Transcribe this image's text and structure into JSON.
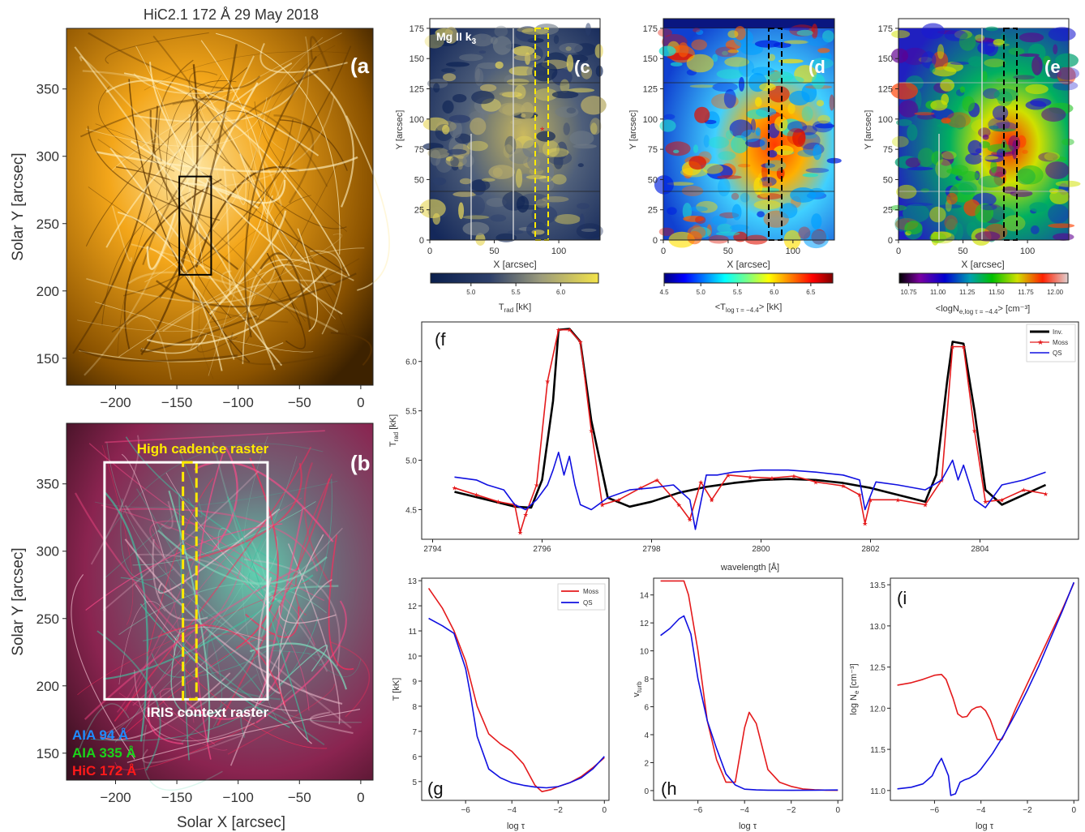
{
  "figure": {
    "title": "HiC2.1 172 Å 29 May 2018",
    "colors": {
      "hic": "#f0a000",
      "moss": "#e41a1c",
      "qs": "#1010e0",
      "inv": "#000000",
      "highlight": "#ffea00"
    }
  },
  "panels": {
    "a": {
      "letter": "(a",
      "ylabel": "Solar Y [arcsec]",
      "xlim": [
        -240,
        10
      ],
      "ylim": [
        130,
        395
      ],
      "xticks": [
        -200,
        -150,
        -100,
        -50,
        0
      ],
      "yticks": [
        150,
        200,
        250,
        300,
        350
      ],
      "box": {
        "x0": -148,
        "x1": -122,
        "y0": 212,
        "y1": 285
      }
    },
    "b": {
      "letter": "(b",
      "ylabel": "Solar Y [arcsec]",
      "xlabel": "Solar X [arcsec]",
      "xlim": [
        -240,
        10
      ],
      "ylim": [
        130,
        395
      ],
      "xticks": [
        -200,
        -150,
        -100,
        -50,
        0
      ],
      "yticks": [
        150,
        200,
        250,
        300,
        350
      ],
      "high_cadence_label": "High cadence raster",
      "context_label": "IRIS context raster",
      "context_box": {
        "x0": -209,
        "x1": -76,
        "y0": 190,
        "y1": 366
      },
      "hc_box": {
        "x0": -145,
        "x1": -134,
        "y0": 190,
        "y1": 366
      },
      "legend": [
        {
          "text": "AIA 94 Å",
          "color": "#1e8cff"
        },
        {
          "text": "AIA 335 Å",
          "color": "#1ad41a"
        },
        {
          "text": "HiC 172 Å",
          "color": "#ff1a1a"
        }
      ]
    },
    "c": {
      "letter": "(c",
      "line_label": "Mg II k",
      "line_sub": "3",
      "xlabel": "X [arcsec]",
      "ylabel": "Y [arcsec]",
      "xticks": [
        0,
        50,
        100
      ],
      "yticks": [
        0,
        25,
        50,
        75,
        100,
        125,
        150,
        175
      ],
      "cbar_label": "T",
      "cbar_sub": "rad",
      "cbar_unit": " [kK]",
      "cbar_ticks": [
        "5.0",
        "5.5",
        "6.0"
      ]
    },
    "d": {
      "letter": "(d",
      "xlabel": "X [arcsec]",
      "ylabel": "Y [arcsec]",
      "xticks": [
        0,
        50,
        100
      ],
      "yticks": [
        0,
        25,
        50,
        75,
        100,
        125,
        150,
        175
      ],
      "cbar_label": "<T",
      "cbar_sub": "log τ = −4.4",
      "cbar_unit": "> [kK]",
      "cbar_ticks": [
        "4.5",
        "5.0",
        "5.5",
        "6.0",
        "6.5"
      ]
    },
    "e": {
      "letter": "(e",
      "xlabel": "X [arcsec]",
      "ylabel": "Y [arcsec]",
      "xticks": [
        0,
        50,
        100
      ],
      "yticks": [
        0,
        25,
        50,
        75,
        100,
        125,
        150,
        175
      ],
      "cbar_label": "<logN",
      "cbar_sub": "e,log τ = −4.4",
      "cbar_unit": "> [cm⁻³]",
      "cbar_ticks": [
        "10.75",
        "11.00",
        "11.25",
        "11.50",
        "11.75",
        "12.00"
      ]
    },
    "f": {
      "letter": "(f",
      "xlabel": "wavelength [Å]",
      "ylabel": "T",
      "ylabel_sub": "rad",
      "ylabel_unit": " [kK]",
      "legend": [
        "Inv.",
        "Moss",
        "QS"
      ]
    },
    "g": {
      "letter": "(g",
      "ylabel": "T [kK]",
      "xlabel": "log τ",
      "legend": [
        "Moss",
        "QS"
      ]
    },
    "h": {
      "letter": "(h",
      "ylabel": "v",
      "ylabel_sub": "turb",
      "xlabel": "log τ"
    },
    "i": {
      "letter": "(i",
      "ylabel": "log N",
      "ylabel_sub": "e",
      "ylabel_unit": " [cm⁻³]",
      "xlabel": "log τ"
    }
  },
  "chart_data": [
    {
      "panel": "f",
      "type": "line",
      "xlabel": "wavelength [Å]",
      "ylabel": "Trad [kK]",
      "xlim": [
        2793.8,
        2805.8
      ],
      "ylim": [
        4.2,
        6.4
      ],
      "xticks": [
        2794,
        2796,
        2798,
        2800,
        2802,
        2804
      ],
      "yticks": [
        4.5,
        5.0,
        5.5,
        6.0
      ],
      "series": [
        {
          "name": "Inv.",
          "color": "#000000",
          "x": [
            2794.4,
            2795.0,
            2795.5,
            2795.8,
            2796.0,
            2796.2,
            2796.3,
            2796.5,
            2796.7,
            2796.9,
            2797.2,
            2797.6,
            2798.0,
            2798.5,
            2799.0,
            2799.5,
            2800.0,
            2800.5,
            2801.0,
            2801.5,
            2802.0,
            2802.5,
            2803.0,
            2803.2,
            2803.4,
            2803.5,
            2803.7,
            2803.9,
            2804.1,
            2804.4,
            2804.8,
            2805.2
          ],
          "values": [
            4.68,
            4.6,
            4.53,
            4.52,
            4.8,
            5.6,
            6.32,
            6.33,
            6.2,
            5.4,
            4.62,
            4.53,
            4.58,
            4.67,
            4.73,
            4.77,
            4.8,
            4.81,
            4.8,
            4.77,
            4.72,
            4.65,
            4.58,
            4.85,
            5.8,
            6.2,
            6.18,
            5.5,
            4.7,
            4.55,
            4.65,
            4.75
          ]
        },
        {
          "name": "Moss",
          "color": "#e41a1c",
          "marker": "star",
          "x": [
            2794.4,
            2794.8,
            2795.2,
            2795.5,
            2795.6,
            2795.7,
            2795.9,
            2796.1,
            2796.3,
            2796.5,
            2796.7,
            2796.9,
            2797.1,
            2797.4,
            2797.8,
            2798.1,
            2798.5,
            2798.7,
            2798.9,
            2799.1,
            2799.4,
            2799.8,
            2800.2,
            2800.6,
            2801.0,
            2801.5,
            2801.8,
            2801.9,
            2802.0,
            2802.5,
            2803.0,
            2803.3,
            2803.5,
            2803.7,
            2803.9,
            2804.1,
            2804.4,
            2804.8,
            2805.2
          ],
          "values": [
            4.72,
            4.65,
            4.58,
            4.55,
            4.27,
            4.45,
            4.75,
            5.8,
            6.32,
            6.32,
            6.2,
            5.3,
            4.55,
            4.6,
            4.72,
            4.8,
            4.55,
            4.4,
            4.78,
            4.6,
            4.85,
            4.83,
            4.82,
            4.84,
            4.78,
            4.74,
            4.65,
            4.36,
            4.6,
            4.6,
            4.55,
            4.8,
            6.15,
            6.15,
            5.3,
            4.58,
            4.6,
            4.7,
            4.66
          ]
        },
        {
          "name": "QS",
          "color": "#1010e0",
          "x": [
            2794.4,
            2794.8,
            2795.0,
            2795.3,
            2795.5,
            2795.7,
            2795.9,
            2796.1,
            2796.2,
            2796.3,
            2796.4,
            2796.5,
            2796.6,
            2796.7,
            2796.9,
            2797.2,
            2797.6,
            2798.0,
            2798.4,
            2798.7,
            2798.8,
            2799.0,
            2799.2,
            2799.5,
            2800.0,
            2800.5,
            2801.0,
            2801.5,
            2801.8,
            2801.9,
            2802.1,
            2802.5,
            2803.0,
            2803.3,
            2803.5,
            2803.6,
            2803.7,
            2803.9,
            2804.1,
            2804.4,
            2804.8,
            2805.2
          ],
          "values": [
            4.83,
            4.8,
            4.75,
            4.7,
            4.55,
            4.5,
            4.6,
            4.75,
            4.9,
            5.08,
            4.85,
            5.04,
            4.75,
            4.55,
            4.5,
            4.62,
            4.7,
            4.72,
            4.75,
            4.6,
            4.3,
            4.85,
            4.85,
            4.88,
            4.9,
            4.9,
            4.88,
            4.85,
            4.8,
            4.5,
            4.78,
            4.75,
            4.7,
            4.8,
            5.0,
            4.8,
            4.95,
            4.6,
            4.52,
            4.75,
            4.8,
            4.88
          ]
        }
      ]
    },
    {
      "panel": "g",
      "type": "line",
      "xlabel": "log τ",
      "ylabel": "T [kK]",
      "xlim": [
        -7.9,
        0.2
      ],
      "ylim": [
        4.25,
        13.1
      ],
      "xticks": [
        -6,
        -4,
        -2,
        0
      ],
      "yticks": [
        5,
        6,
        7,
        8,
        9,
        10,
        11,
        12,
        13
      ],
      "series": [
        {
          "name": "Moss",
          "color": "#e41a1c",
          "x": [
            -7.6,
            -7.0,
            -6.5,
            -6.0,
            -5.5,
            -5.0,
            -4.5,
            -4.0,
            -3.5,
            -3.0,
            -2.7,
            -2.3,
            -2.0,
            -1.5,
            -1.0,
            -0.5,
            0.0
          ],
          "values": [
            12.7,
            11.9,
            11.0,
            9.8,
            8.0,
            6.9,
            6.5,
            6.2,
            5.7,
            4.85,
            4.6,
            4.68,
            4.8,
            4.95,
            5.2,
            5.55,
            5.95
          ]
        },
        {
          "name": "QS",
          "color": "#1010e0",
          "x": [
            -7.6,
            -7.0,
            -6.5,
            -6.0,
            -5.8,
            -5.5,
            -5.0,
            -4.5,
            -4.0,
            -3.5,
            -3.0,
            -2.5,
            -2.0,
            -1.5,
            -1.0,
            -0.5,
            0.0
          ],
          "values": [
            11.5,
            11.2,
            10.9,
            9.5,
            8.5,
            6.8,
            5.5,
            5.15,
            4.95,
            4.85,
            4.78,
            4.75,
            4.8,
            4.95,
            5.15,
            5.5,
            6.0
          ]
        }
      ]
    },
    {
      "panel": "h",
      "type": "line",
      "xlabel": "log τ",
      "ylabel": "vturb",
      "xlim": [
        -7.9,
        0.2
      ],
      "ylim": [
        -0.7,
        15.2
      ],
      "xticks": [
        -6,
        -4,
        -2,
        0
      ],
      "yticks": [
        0,
        2,
        4,
        6,
        8,
        10,
        12,
        14
      ],
      "series": [
        {
          "name": "Moss",
          "color": "#e41a1c",
          "x": [
            -7.6,
            -7.0,
            -6.6,
            -6.4,
            -6.0,
            -5.6,
            -5.2,
            -4.8,
            -4.4,
            -4.0,
            -3.8,
            -3.5,
            -3.0,
            -2.5,
            -2.0,
            -1.5,
            -1.0,
            -0.5,
            0.0
          ],
          "values": [
            15,
            15,
            15,
            14,
            10,
            5,
            2.2,
            0.6,
            0.6,
            4.5,
            5.6,
            4.8,
            1.5,
            0.6,
            0.3,
            0.12,
            0.06,
            0.03,
            0.02
          ]
        },
        {
          "name": "QS",
          "color": "#1010e0",
          "x": [
            -7.6,
            -7.2,
            -6.8,
            -6.6,
            -6.3,
            -6.0,
            -5.6,
            -5.2,
            -4.8,
            -4.4,
            -4.0,
            -3.5,
            -3.0,
            -2.0,
            -1.0,
            0.0
          ],
          "values": [
            11.1,
            11.6,
            12.3,
            12.5,
            11.2,
            8.0,
            5.0,
            3.0,
            1.2,
            0.4,
            0.1,
            0.05,
            0.03,
            0.02,
            0.03,
            0.04
          ]
        }
      ]
    },
    {
      "panel": "i",
      "type": "line",
      "xlabel": "log τ",
      "ylabel": "log Ne [cm⁻³]",
      "xlim": [
        -7.9,
        0.2
      ],
      "ylim": [
        10.88,
        13.58
      ],
      "xticks": [
        -6,
        -4,
        -2,
        0
      ],
      "yticks": [
        11.0,
        11.5,
        12.0,
        12.5,
        13.0,
        13.5
      ],
      "series": [
        {
          "name": "Moss",
          "color": "#e41a1c",
          "x": [
            -7.6,
            -7.0,
            -6.5,
            -6.0,
            -5.7,
            -5.5,
            -5.2,
            -5.0,
            -4.8,
            -4.6,
            -4.4,
            -4.2,
            -4.0,
            -3.8,
            -3.6,
            -3.3,
            -3.1,
            -2.8,
            -2.5,
            -2.0,
            -1.5,
            -1.0,
            -0.5,
            0.0
          ],
          "values": [
            12.28,
            12.31,
            12.35,
            12.4,
            12.41,
            12.35,
            12.12,
            11.93,
            11.89,
            11.9,
            11.98,
            12.01,
            12.02,
            11.97,
            11.86,
            11.62,
            11.62,
            11.8,
            12.0,
            12.3,
            12.6,
            12.9,
            13.2,
            13.52
          ]
        },
        {
          "name": "QS",
          "color": "#1010e0",
          "x": [
            -7.6,
            -7.0,
            -6.5,
            -6.1,
            -5.9,
            -5.7,
            -5.6,
            -5.4,
            -5.3,
            -5.1,
            -4.9,
            -4.7,
            -4.5,
            -4.2,
            -4.0,
            -3.5,
            -3.0,
            -2.5,
            -2.0,
            -1.5,
            -1.0,
            -0.5,
            0.0
          ],
          "values": [
            11.02,
            11.04,
            11.08,
            11.18,
            11.3,
            11.39,
            11.32,
            11.18,
            10.94,
            10.96,
            11.1,
            11.13,
            11.15,
            11.2,
            11.26,
            11.45,
            11.68,
            11.94,
            12.22,
            12.52,
            12.85,
            13.18,
            13.53
          ]
        }
      ]
    }
  ]
}
